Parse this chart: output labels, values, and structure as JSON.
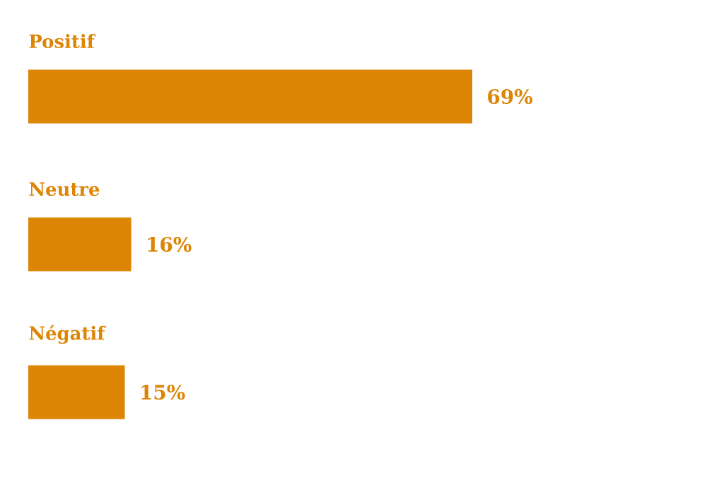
{
  "chart_data": {
    "type": "bar",
    "orientation": "horizontal",
    "categories": [
      "Positif",
      "Neutre",
      "Négatif"
    ],
    "values": [
      69,
      16,
      15
    ],
    "value_labels": [
      "69%",
      "16%",
      "15%"
    ],
    "color": "#dd8505"
  }
}
